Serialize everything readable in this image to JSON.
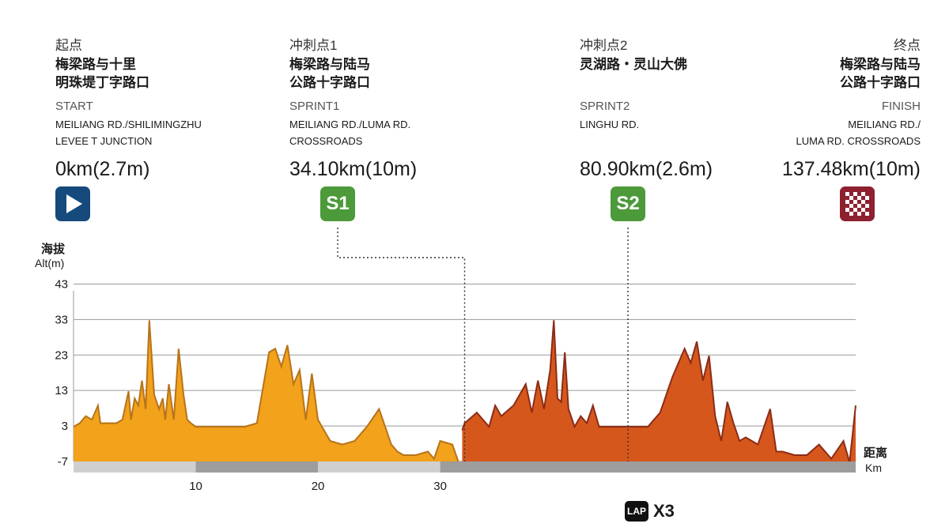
{
  "points": {
    "start": {
      "zh_label": "起点",
      "zh_name_1": "梅梁路与十里",
      "zh_name_2": "明珠堤丁字路口",
      "en_label": "START",
      "en_name_1": "MEILIANG RD./SHILIMINGZHU",
      "en_name_2": "LEVEE T JUNCTION",
      "distance": "0km(2.7m)"
    },
    "sprint1": {
      "zh_label": "冲刺点1",
      "zh_name_1": "梅梁路与陆马",
      "zh_name_2": "公路十字路口",
      "en_label": "SPRINT1",
      "en_name_1": "MEILIANG RD./LUMA RD.",
      "en_name_2": "CROSSROADS",
      "distance": "34.10km(10m)",
      "badge": "S1"
    },
    "sprint2": {
      "zh_label": "冲刺点2",
      "zh_name_1": "灵湖路・灵山大佛",
      "en_label": "SPRINT2",
      "en_name_1": "LINGHU RD.",
      "distance": "80.90km(2.6m)",
      "badge": "S2"
    },
    "finish": {
      "zh_label": "终点",
      "zh_name_1": "梅梁路与陆马",
      "zh_name_2": "公路十字路口",
      "en_label": "FINISH",
      "en_name_1": "MEILIANG RD./",
      "en_name_2": "LUMA RD. CROSSROADS",
      "distance": "137.48km(10m)"
    }
  },
  "icons": {
    "start": "play-icon",
    "finish": "checkered-flag-icon",
    "lap": "lap-icon"
  },
  "lap": {
    "icon_text": "LAP",
    "text": "X3"
  },
  "chart_data": {
    "type": "area",
    "ylabel_zh": "海拔",
    "ylabel_en": "Alt(m)",
    "xlabel_zh": "距离",
    "xlabel_en": "Km",
    "yticks": [
      -7,
      3,
      13,
      23,
      33,
      43
    ],
    "ylim": [
      -7,
      50
    ],
    "xticks": [
      10,
      20,
      30
    ],
    "xlim": [
      0,
      64
    ],
    "grid": true,
    "x_band_segments": [
      {
        "from": 0,
        "to": 10,
        "shade": "light"
      },
      {
        "from": 10,
        "to": 20,
        "shade": "dark"
      },
      {
        "from": 20,
        "to": 30,
        "shade": "light"
      },
      {
        "from": 30,
        "to": 64,
        "shade": "dark"
      }
    ],
    "series": [
      {
        "fill": "#f2a21b",
        "stroke": "#b7731a",
        "x": [
          0,
          0.5,
          1,
          1.5,
          2,
          2.2,
          2.5,
          3,
          3.5,
          4,
          4.5,
          4.7,
          5,
          5.3,
          5.6,
          5.9,
          6.2,
          6.6,
          7,
          7.3,
          7.5,
          7.8,
          8.2,
          8.6,
          9,
          9.3,
          9.6,
          10,
          11,
          12,
          13,
          14,
          15,
          15.5,
          16,
          16.5,
          17,
          17.5,
          18,
          18.5,
          19,
          19.5,
          20,
          20.5,
          21,
          22,
          23,
          24,
          25,
          26,
          26.5,
          27,
          28,
          29,
          29.5,
          30,
          31,
          31.5,
          31.8
        ],
        "y": [
          3,
          4,
          6,
          5,
          9,
          4,
          4,
          4,
          4,
          5,
          13,
          5,
          11,
          9,
          16,
          8,
          33,
          12,
          8,
          11,
          5,
          15,
          5,
          25,
          12,
          5,
          4,
          3,
          3,
          3,
          3,
          3,
          4,
          14,
          24,
          25,
          20,
          26,
          15,
          19,
          5,
          18,
          5,
          2,
          -1,
          -2,
          -1,
          3,
          8,
          -2,
          -4,
          -5,
          -5,
          -4,
          -6,
          -1,
          -2,
          -7,
          -7
        ]
      },
      {
        "fill": "#d6571c",
        "stroke": "#8b2c17",
        "x": [
          31.8,
          32,
          33,
          34,
          34.5,
          35,
          36,
          37,
          37.5,
          38,
          38.5,
          39,
          39.3,
          39.6,
          39.9,
          40.2,
          40.5,
          41,
          41.5,
          42,
          42.5,
          43,
          44,
          45,
          46,
          47,
          48,
          49,
          50,
          50.5,
          51,
          51.5,
          52,
          52.5,
          53,
          53.5,
          54,
          54.5,
          55,
          56,
          57,
          57.5,
          58,
          59,
          60,
          61,
          62,
          63,
          63.5,
          64
        ],
        "y": [
          2,
          4,
          7,
          3,
          9,
          6,
          9,
          15,
          7,
          16,
          8,
          19,
          33,
          11,
          10,
          24,
          8,
          3,
          6,
          4,
          9,
          3,
          3,
          3,
          3,
          3,
          7,
          17,
          25,
          21,
          27,
          16,
          23,
          6,
          -1,
          10,
          4,
          -1,
          0,
          -2,
          8,
          -4,
          -4,
          -5,
          -5,
          -2,
          -6,
          -1,
          -7,
          9
        ]
      }
    ],
    "markers": [
      {
        "x": 32,
        "label": "S1"
      },
      {
        "x": 45,
        "label": "S2"
      }
    ]
  }
}
